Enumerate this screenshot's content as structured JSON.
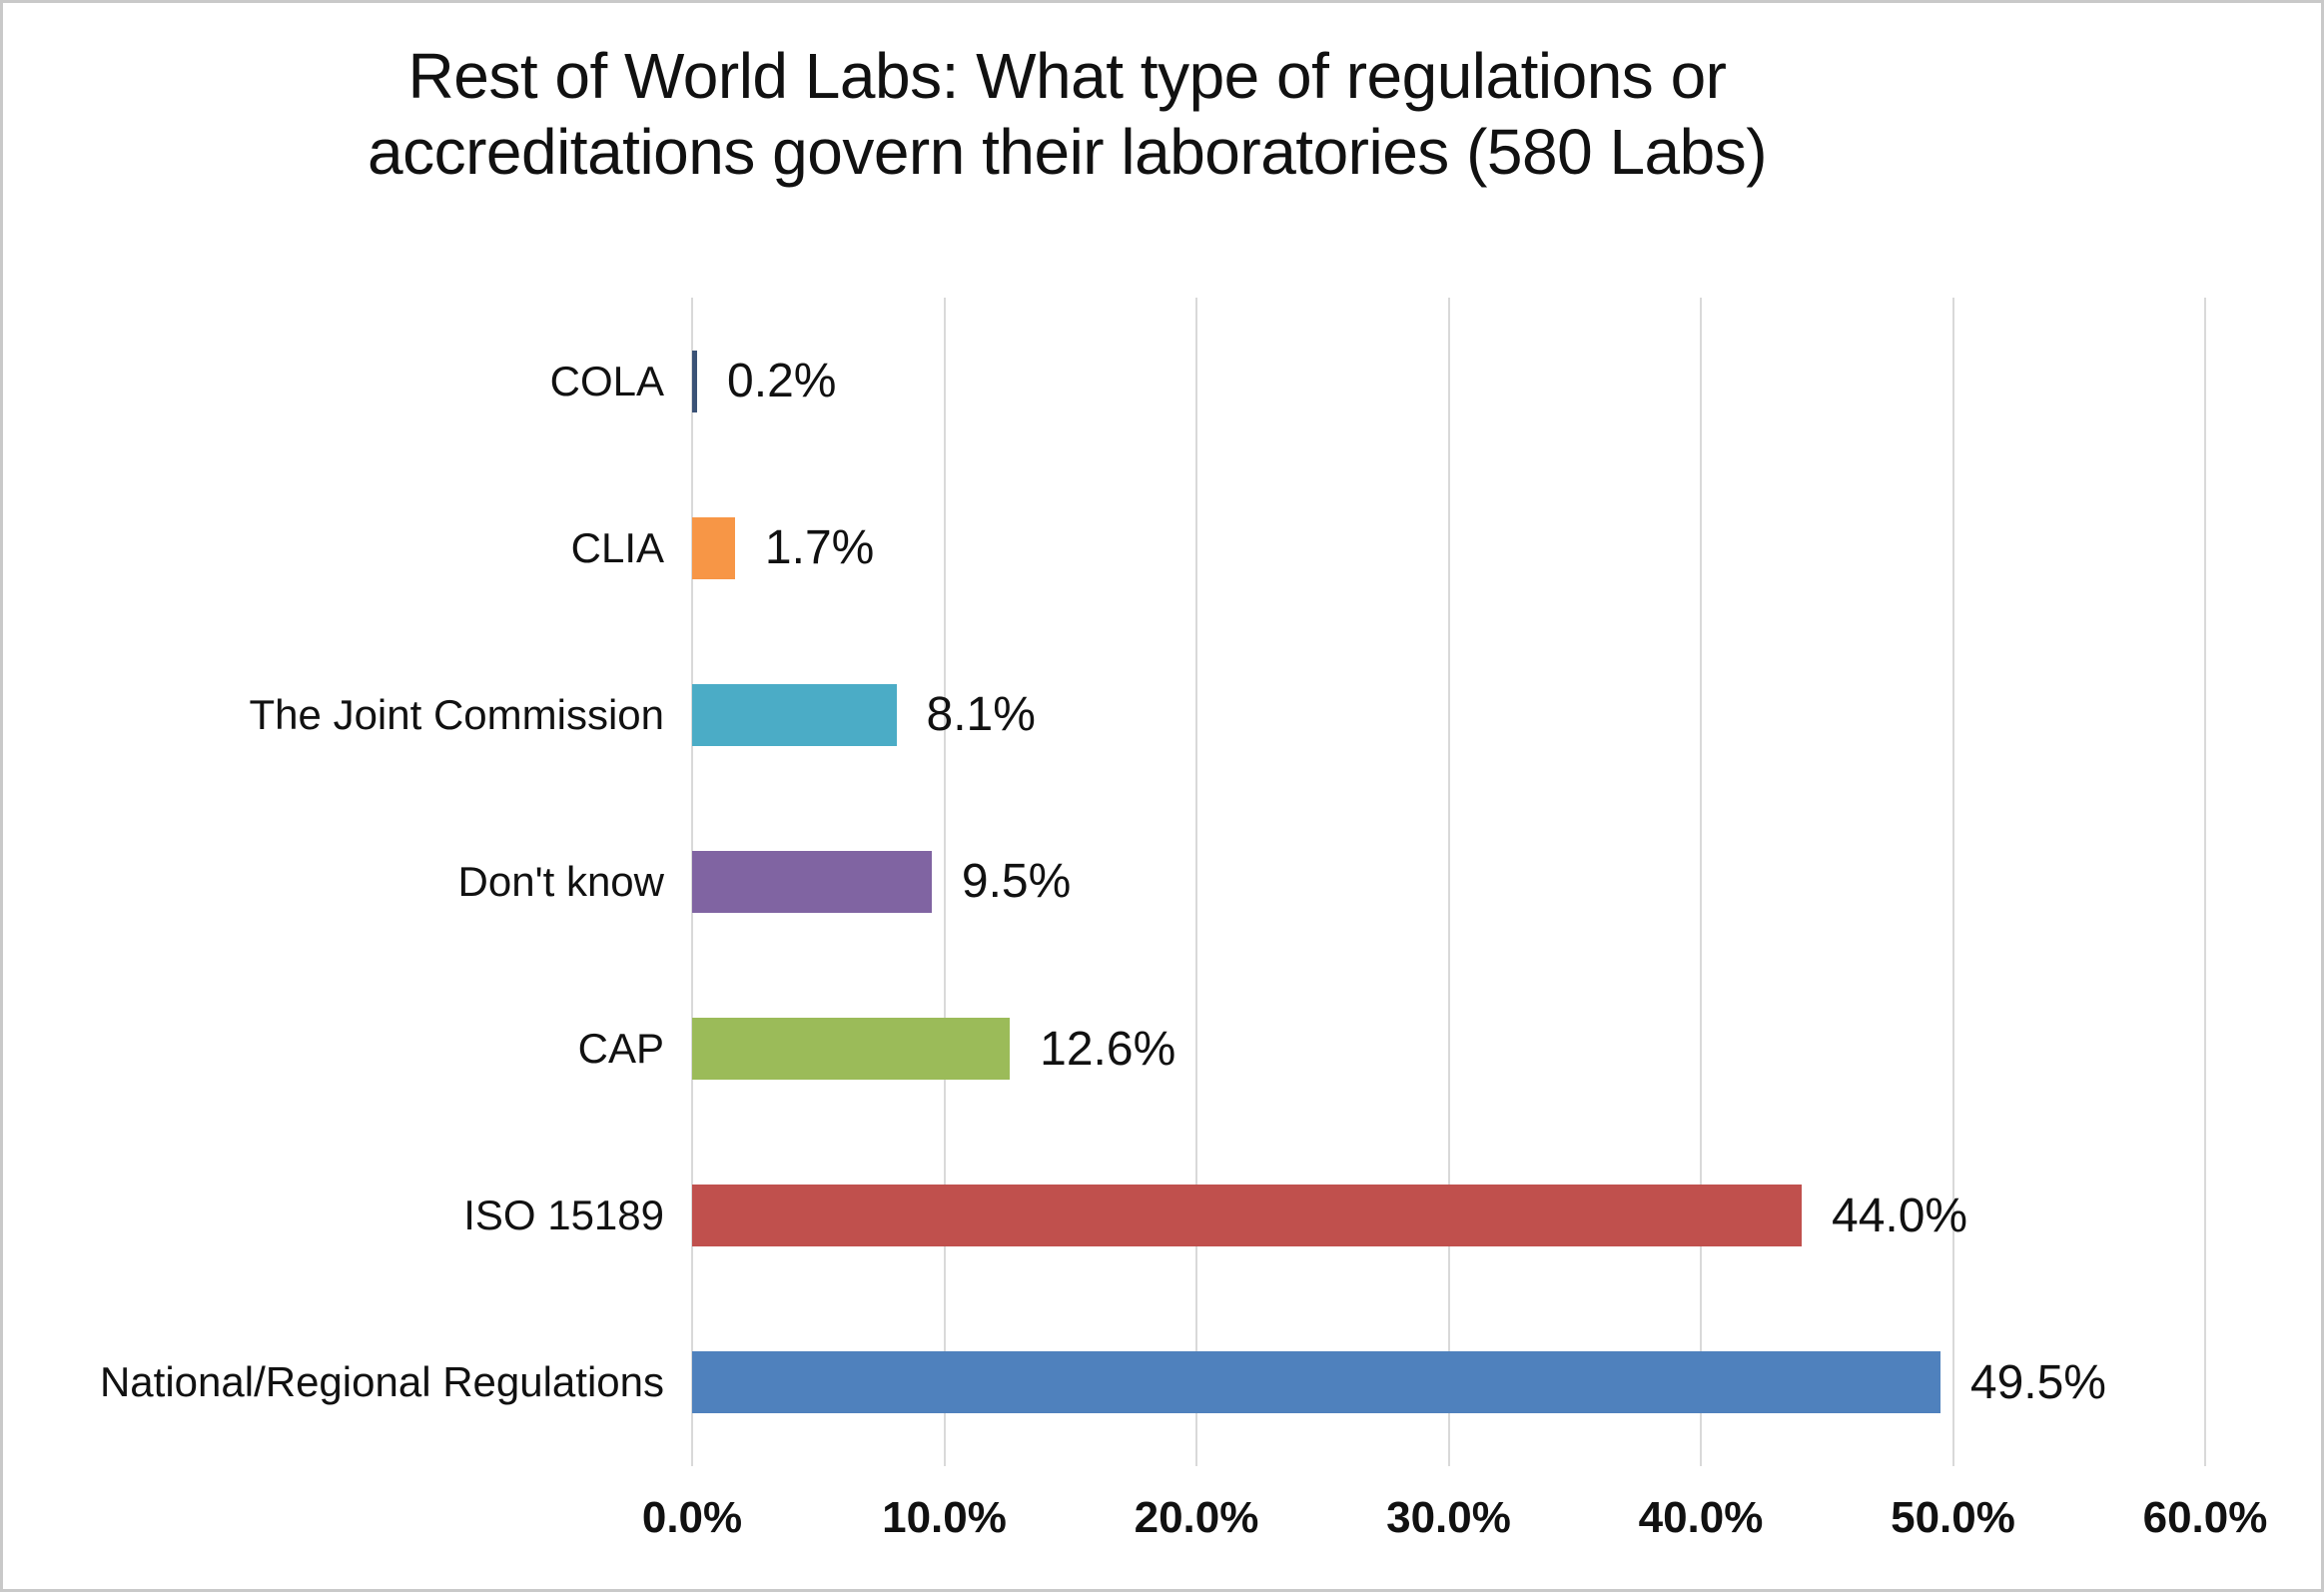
{
  "page": {
    "background": "#ffffff",
    "border_color": "#c9c9c9"
  },
  "chart_data": {
    "type": "bar",
    "orientation": "horizontal",
    "title": "Rest of World Labs: What type of regulations or accreditations govern their laboratories (580 Labs)",
    "title_lines": [
      "Rest of World Labs: What type of regulations or",
      "accreditations govern their laboratories (580 Labs)"
    ],
    "categories": [
      "COLA",
      "CLIA",
      "The Joint Commission",
      "Don't know",
      "CAP",
      "ISO 15189",
      "National/Regional Regulations"
    ],
    "values": [
      0.2,
      1.7,
      8.1,
      9.5,
      12.6,
      44.0,
      49.5
    ],
    "data_labels": [
      "0.2%",
      "1.7%",
      "8.1%",
      "9.5%",
      "12.6%",
      "44.0%",
      "49.5%"
    ],
    "bar_colors": [
      "#3A5276",
      "#F79646",
      "#4BACC6",
      "#8064A2",
      "#9BBB59",
      "#C0504D",
      "#4F81BD"
    ],
    "xlabel": "",
    "ylabel": "",
    "xlim": [
      0,
      60
    ],
    "x_ticks": [
      0,
      10,
      20,
      30,
      40,
      50,
      60
    ],
    "x_tick_labels": [
      "0.0%",
      "10.0%",
      "20.0%",
      "30.0%",
      "40.0%",
      "50.0%",
      "60.0%"
    ],
    "gridlines": "vertical",
    "gridline_color": "#D9D9D9",
    "legend": "none",
    "text_color": "#111111"
  }
}
